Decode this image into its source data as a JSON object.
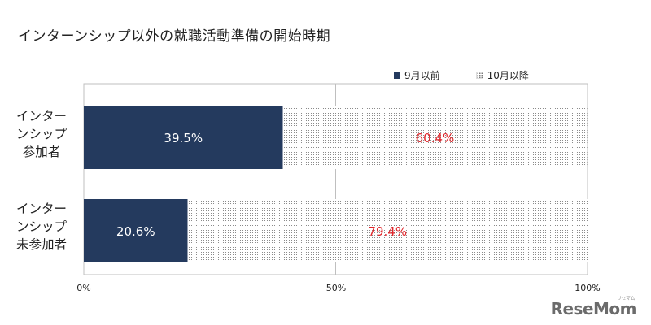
{
  "chart_data": {
    "type": "bar",
    "orientation": "horizontal",
    "stacked": true,
    "title": "インターンシップ以外の就職活動準備の開始時期",
    "categories": [
      [
        "インター",
        "ンシップ",
        "参加者"
      ],
      [
        "インター",
        "ンシップ",
        "未参加者"
      ]
    ],
    "series": [
      {
        "name": "9月以前",
        "values": [
          39.5,
          20.6
        ],
        "labels": [
          "39.5%",
          "20.6%"
        ],
        "color": "#243a5e",
        "label_color": "#ffffff",
        "pattern": "solid"
      },
      {
        "name": "10月以降",
        "values": [
          60.4,
          79.4
        ],
        "labels": [
          "60.4%",
          "79.4%"
        ],
        "color": "#ffffff",
        "label_color": "#e0262b",
        "pattern": "dotted"
      }
    ],
    "xlim": [
      0,
      100
    ],
    "xticks": [
      "0%",
      "50%",
      "100%"
    ],
    "grid": true,
    "legend_position": "top-right"
  },
  "logo": {
    "text": "ReseMom",
    "sub": "リセマム"
  }
}
